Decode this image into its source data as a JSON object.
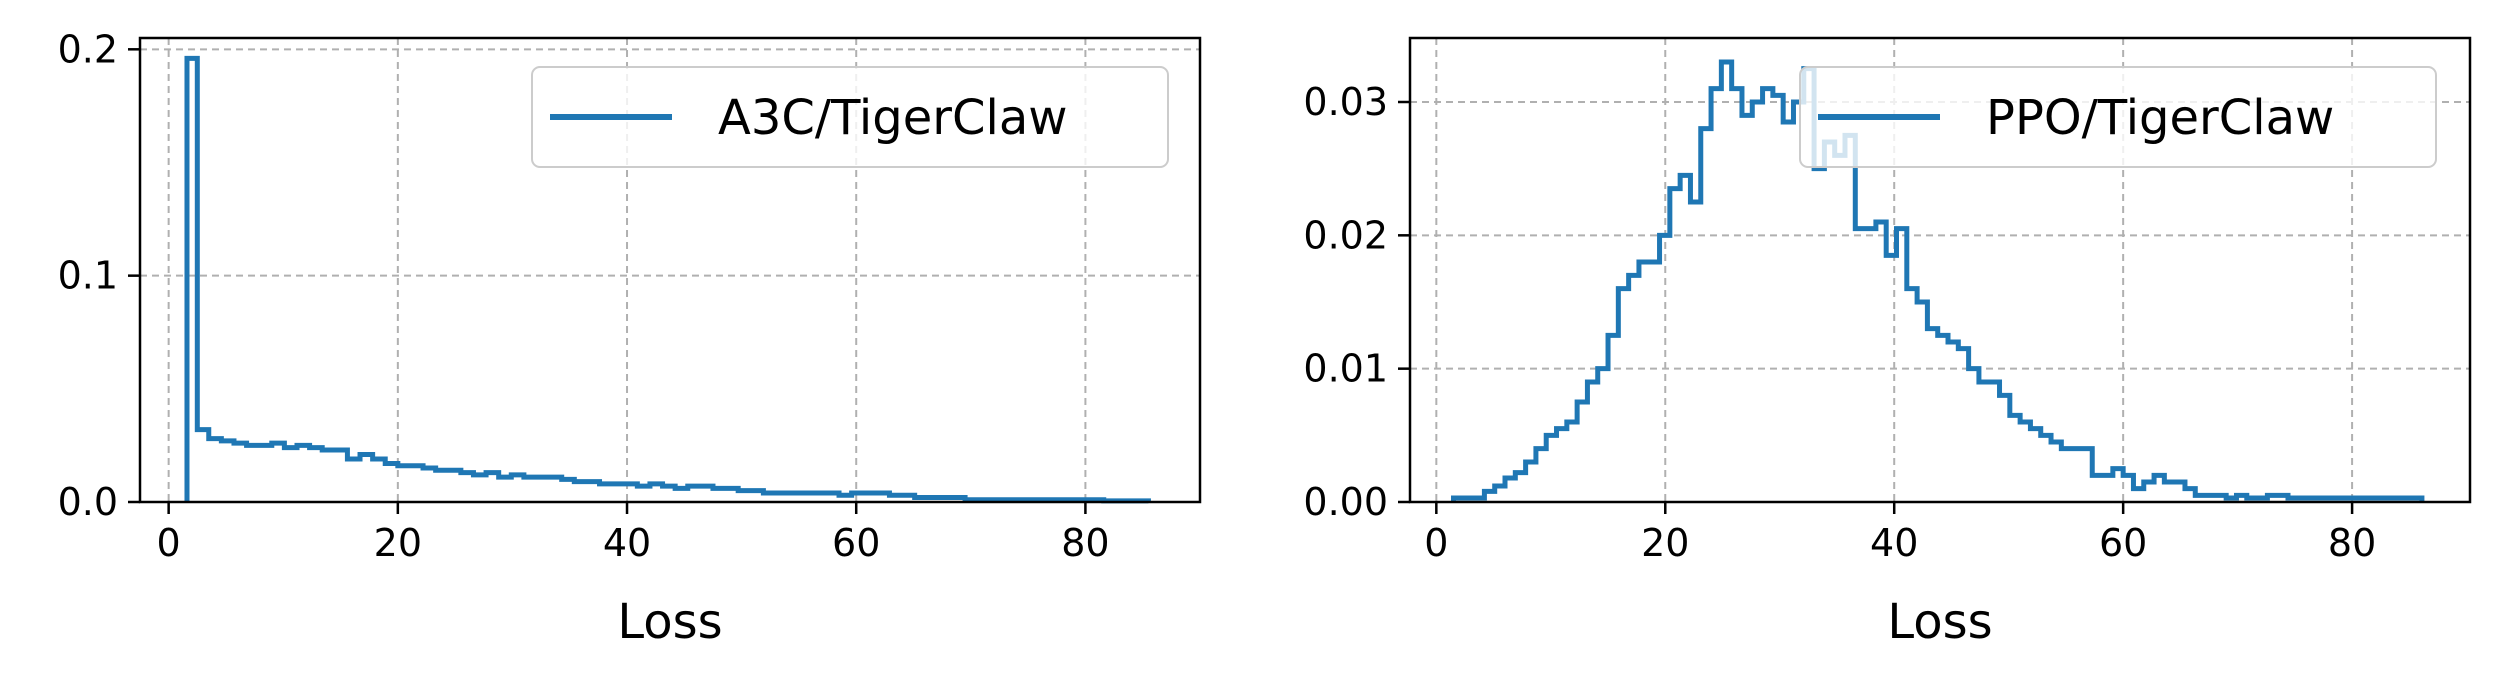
{
  "chart_data": [
    {
      "type": "histogram-step",
      "title": "",
      "xlabel": "Loss",
      "ylabel": "",
      "xlim": [
        -2.5,
        90
      ],
      "ylim": [
        0,
        0.205
      ],
      "xticks": [
        0,
        20,
        40,
        60,
        80
      ],
      "xtick_labels": [
        "0",
        "20",
        "40",
        "60",
        "80"
      ],
      "yticks": [
        0,
        0.1,
        0.2
      ],
      "ytick_labels": [
        "0.0",
        "0.1",
        "0.2"
      ],
      "grid": true,
      "legend_position": "top-right",
      "series": [
        {
          "name": "A3C/TigerClaw",
          "color": "#1f77b4",
          "bin_edges": [
            1.6,
            2.5,
            3.5,
            4.6,
            5.7,
            6.8,
            7.9,
            9.0,
            10.1,
            11.2,
            12.3,
            13.4,
            14.5,
            15.6,
            16.7,
            17.8,
            18.9,
            20.0,
            21.1,
            22.2,
            23.3,
            24.4,
            25.5,
            26.6,
            27.7,
            28.8,
            29.9,
            31.0,
            32.1,
            33.2,
            34.3,
            35.4,
            36.5,
            37.6,
            38.7,
            39.8,
            40.9,
            42.0,
            43.1,
            44.2,
            45.3,
            46.4,
            47.5,
            48.6,
            49.7,
            50.8,
            51.9,
            53.0,
            54.1,
            55.2,
            56.3,
            57.4,
            58.5,
            59.6,
            60.7,
            61.8,
            62.9,
            64.0,
            65.1,
            66.2,
            67.3,
            68.4,
            69.5,
            70.6,
            71.7,
            72.8,
            73.9,
            75.0,
            76.1,
            77.2,
            78.3,
            79.4,
            80.5,
            81.6,
            82.7,
            83.8,
            84.9,
            85.5
          ],
          "values": [
            0.196,
            0.032,
            0.028,
            0.027,
            0.026,
            0.025,
            0.025,
            0.026,
            0.024,
            0.025,
            0.024,
            0.023,
            0.023,
            0.019,
            0.021,
            0.019,
            0.017,
            0.016,
            0.016,
            0.015,
            0.014,
            0.014,
            0.013,
            0.012,
            0.013,
            0.011,
            0.012,
            0.011,
            0.011,
            0.011,
            0.01,
            0.009,
            0.009,
            0.008,
            0.008,
            0.008,
            0.007,
            0.008,
            0.007,
            0.006,
            0.007,
            0.007,
            0.006,
            0.006,
            0.005,
            0.005,
            0.004,
            0.004,
            0.004,
            0.004,
            0.004,
            0.004,
            0.003,
            0.004,
            0.004,
            0.004,
            0.003,
            0.003,
            0.002,
            0.002,
            0.002,
            0.002,
            0.001,
            0.001,
            0.001,
            0.001,
            0.001,
            0.001,
            0.001,
            0.001,
            0.001,
            0.001,
            0.001,
            0.0005,
            0.0005,
            0.0005,
            0.0005
          ]
        }
      ]
    },
    {
      "type": "histogram-step",
      "title": "",
      "xlabel": "Loss",
      "ylabel": "",
      "xlim": [
        -2.3,
        90.3
      ],
      "ylim": [
        0,
        0.0348
      ],
      "xticks": [
        0,
        20,
        40,
        60,
        80
      ],
      "xtick_labels": [
        "0",
        "20",
        "40",
        "60",
        "80"
      ],
      "yticks": [
        0,
        0.01,
        0.02,
        0.03
      ],
      "ytick_labels": [
        "0.00",
        "0.01",
        "0.02",
        "0.03"
      ],
      "grid": true,
      "legend_position": "top-right",
      "series": [
        {
          "name": "PPO/TigerClaw",
          "color": "#1f77b4",
          "bin_edges": [
            1.5,
            2.4,
            3.3,
            4.2,
            5.1,
            6.0,
            6.9,
            7.8,
            8.7,
            9.6,
            10.5,
            11.4,
            12.3,
            13.2,
            14.1,
            15.0,
            15.9,
            16.8,
            17.7,
            18.6,
            19.5,
            20.4,
            21.3,
            22.2,
            23.1,
            24.0,
            24.9,
            25.8,
            26.7,
            27.6,
            28.5,
            29.4,
            30.3,
            31.2,
            32.1,
            33.0,
            33.9,
            34.8,
            35.7,
            36.6,
            37.5,
            38.4,
            39.3,
            40.2,
            41.1,
            42.0,
            42.9,
            43.8,
            44.7,
            45.6,
            46.5,
            47.4,
            48.3,
            49.2,
            50.1,
            51.0,
            51.9,
            52.8,
            53.7,
            54.6,
            55.5,
            56.4,
            57.3,
            58.2,
            59.1,
            60.0,
            60.9,
            61.8,
            62.7,
            63.6,
            64.5,
            65.4,
            66.3,
            67.2,
            68.1,
            69.0,
            69.9,
            70.8,
            71.7,
            72.6,
            73.5,
            74.4,
            75.3,
            76.2,
            77.1,
            78.0,
            78.9,
            79.8,
            80.7,
            81.6,
            82.5,
            83.4,
            84.3,
            85.2,
            86.1
          ],
          "values": [
            0.0003,
            0.0003,
            0.0003,
            0.0008,
            0.0012,
            0.0018,
            0.0022,
            0.003,
            0.004,
            0.005,
            0.0055,
            0.006,
            0.0075,
            0.009,
            0.01,
            0.0125,
            0.016,
            0.017,
            0.018,
            0.018,
            0.02,
            0.0235,
            0.0245,
            0.0225,
            0.028,
            0.031,
            0.033,
            0.031,
            0.029,
            0.03,
            0.031,
            0.0305,
            0.0285,
            0.03,
            0.0325,
            0.025,
            0.027,
            0.026,
            0.0275,
            0.0205,
            0.0205,
            0.021,
            0.0185,
            0.0205,
            0.016,
            0.015,
            0.013,
            0.0125,
            0.012,
            0.0115,
            0.01,
            0.009,
            0.009,
            0.008,
            0.0065,
            0.006,
            0.0055,
            0.005,
            0.0045,
            0.004,
            0.004,
            0.004,
            0.002,
            0.002,
            0.0025,
            0.002,
            0.001,
            0.0015,
            0.002,
            0.0015,
            0.0015,
            0.001,
            0.0005,
            0.0005,
            0.0005,
            0.0003,
            0.0005,
            0.0003,
            0.0003,
            0.0005,
            0.0005,
            0.0003,
            0.0003,
            0.0003,
            0.0003,
            0.0003,
            0.0003,
            0.0003,
            0.0003,
            0.0003,
            0.0003,
            0.0003,
            0.0003,
            0.0003
          ]
        }
      ]
    }
  ]
}
